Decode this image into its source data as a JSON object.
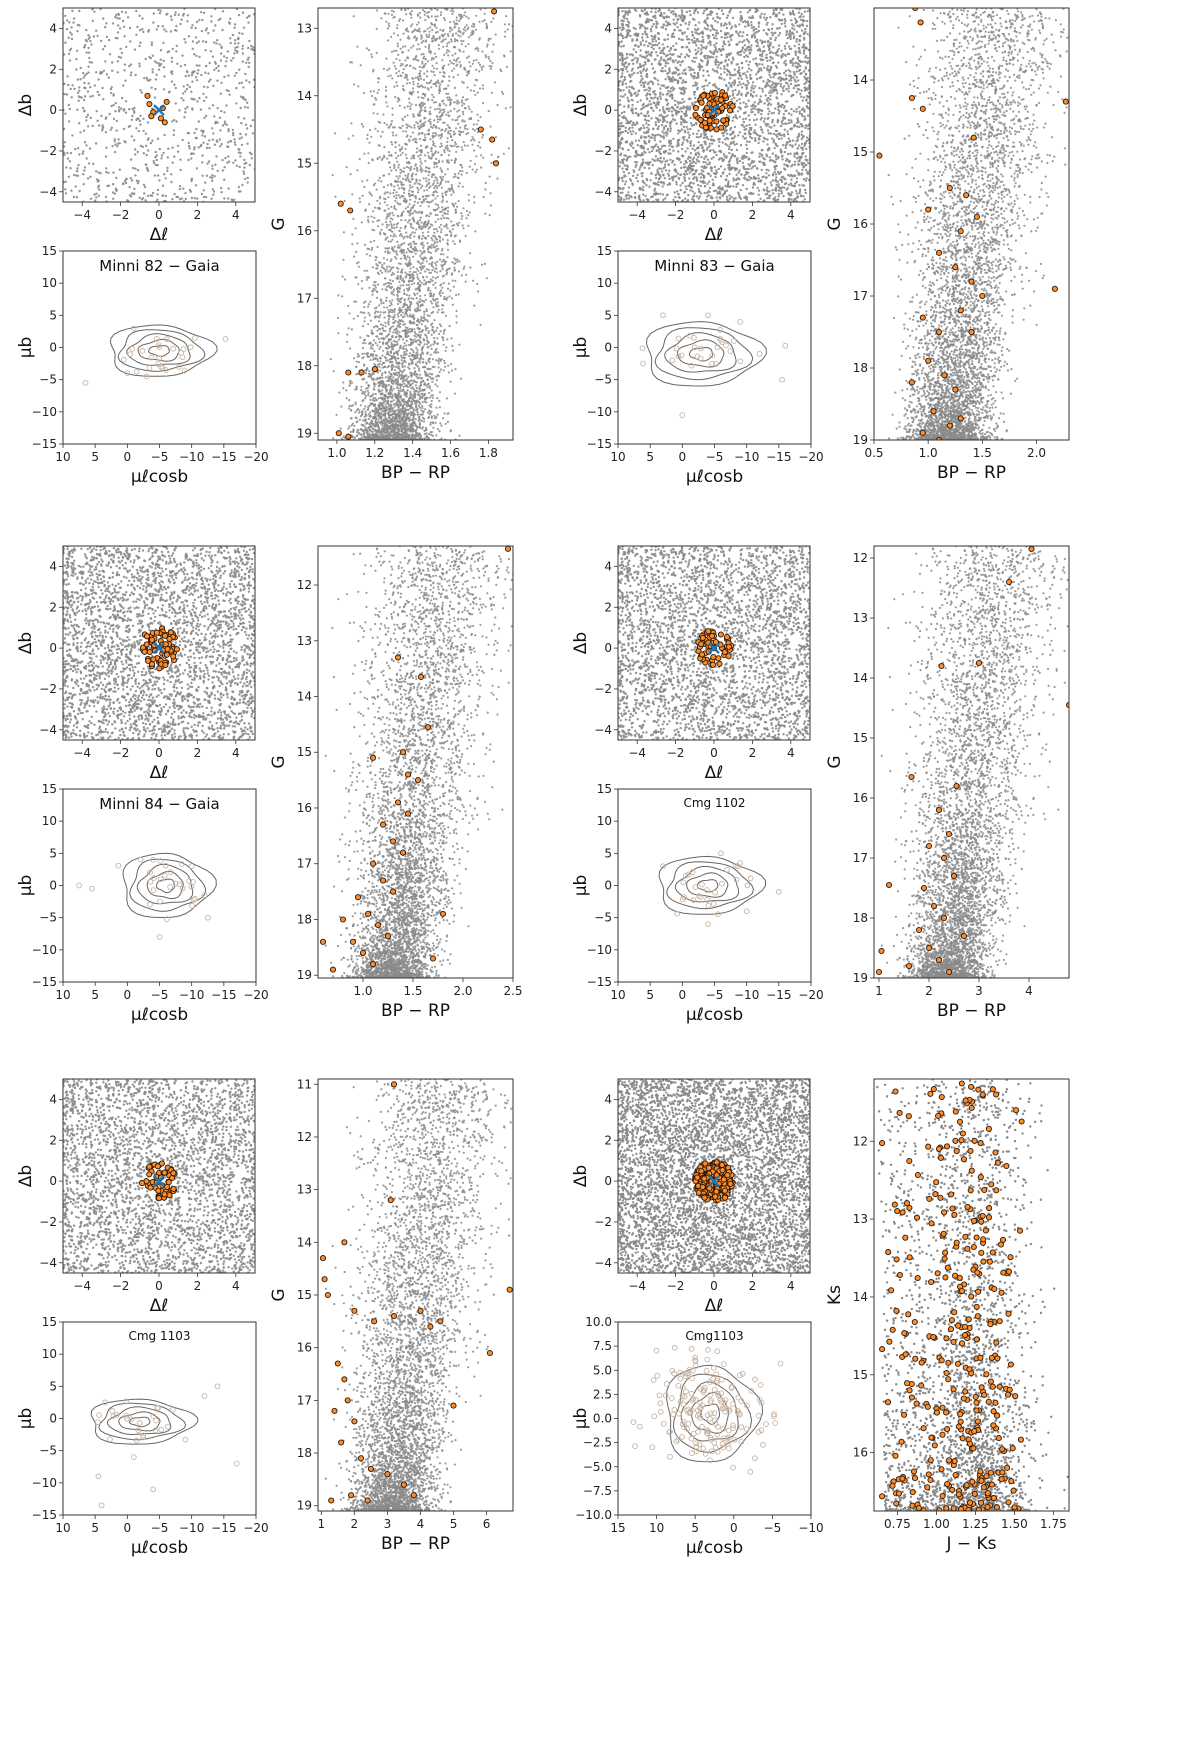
{
  "figure": {
    "colors": {
      "field": "#8a8a8a",
      "member": "#ff8c2a",
      "member_edge": "#2a1a0a",
      "center": "#1f77b4",
      "contour": "#666666",
      "faint": "#c9b3a0",
      "frame": "#333333"
    }
  },
  "chart_data": [
    {
      "id": "minni82",
      "title": "Minni 82 − Gaia",
      "sky": {
        "type": "scatter",
        "xlabel": "Δℓ",
        "ylabel": "Δb",
        "xlim": [
          -5,
          5
        ],
        "ylim": [
          -4.5,
          5
        ],
        "xticks": [
          -4,
          -2,
          0,
          2,
          4
        ],
        "yticks": [
          -4,
          -2,
          0,
          2,
          4
        ],
        "field_density": "sparse",
        "member_radius": 1,
        "members": [
          [
            -0.6,
            0.7
          ],
          [
            -0.5,
            0.3
          ],
          [
            -0.3,
            -0.1
          ],
          [
            0.1,
            -0.4
          ],
          [
            0.3,
            -0.6
          ],
          [
            0.4,
            0.4
          ],
          [
            -0.4,
            -0.3
          ],
          [
            0.2,
            0.1
          ]
        ]
      },
      "pm": {
        "type": "scatter",
        "xlabel": "μℓcosb",
        "ylabel": "μb",
        "xlim": [
          10,
          -20
        ],
        "ylim": [
          -15,
          15
        ],
        "xticks": [
          10,
          5,
          0,
          -5,
          -10,
          -15,
          -20
        ],
        "yticks": [
          -15,
          -10,
          -5,
          0,
          5,
          10,
          15
        ],
        "contour_center": [
          -5,
          -0.5
        ],
        "contour_extent": [
          8,
          4
        ],
        "members": [
          [
            6.5,
            -5.5
          ],
          [
            0,
            -4
          ],
          [
            -3,
            -4.5
          ],
          [
            -6,
            -3.5
          ]
        ]
      },
      "cmd": {
        "type": "scatter",
        "xlabel": "BP − RP",
        "ylabel": "G",
        "xlim": [
          0.9,
          1.93
        ],
        "ylim": [
          19.1,
          12.7
        ],
        "xticks": [
          1.0,
          1.2,
          1.4,
          1.6,
          1.8
        ],
        "yticks": [
          13,
          14,
          15,
          16,
          17,
          18,
          19
        ],
        "members": [
          [
            1.83,
            12.75
          ],
          [
            1.76,
            14.5
          ],
          [
            1.82,
            14.65
          ],
          [
            1.84,
            15.0
          ],
          [
            1.02,
            15.6
          ],
          [
            1.07,
            15.7
          ],
          [
            1.06,
            18.1
          ],
          [
            1.13,
            18.1
          ],
          [
            1.2,
            18.05
          ],
          [
            1.01,
            19.0
          ],
          [
            1.06,
            19.05
          ]
        ]
      }
    },
    {
      "id": "minni83",
      "title": "Minni 83 − Gaia",
      "sky": {
        "type": "scatter",
        "xlabel": "Δℓ",
        "ylabel": "Δb",
        "xlim": [
          -5,
          5
        ],
        "ylim": [
          -4.5,
          5
        ],
        "xticks": [
          -4,
          -2,
          0,
          2,
          4
        ],
        "yticks": [
          -4,
          -2,
          0,
          2,
          4
        ],
        "field_density": "dense",
        "member_radius": 1.0,
        "member_count": 70
      },
      "pm": {
        "type": "scatter",
        "xlabel": "μℓcosb",
        "ylabel": "μb",
        "xlim": [
          10,
          -20
        ],
        "ylim": [
          -15,
          15
        ],
        "xticks": [
          10,
          5,
          0,
          -5,
          -10,
          -15,
          -20
        ],
        "yticks": [
          -15,
          -10,
          -5,
          0,
          5,
          10,
          15
        ],
        "contour_center": [
          -3,
          -1
        ],
        "contour_extent": [
          9,
          5
        ],
        "members": [
          [
            0,
            -10.5
          ],
          [
            -8,
            1
          ],
          [
            -12,
            -1
          ],
          [
            -16,
            0.3
          ],
          [
            -15.5,
            -5
          ],
          [
            -9,
            4
          ],
          [
            -4,
            5
          ],
          [
            3,
            5
          ]
        ]
      },
      "cmd": {
        "type": "scatter",
        "xlabel": "BP − RP",
        "ylabel": "G",
        "xlim": [
          0.5,
          2.3
        ],
        "ylim": [
          19.0,
          13.0
        ],
        "xticks": [
          0.5,
          1.0,
          1.5,
          2.0
        ],
        "yticks": [
          14,
          15,
          16,
          17,
          18,
          19
        ],
        "members": [
          [
            0.88,
            13.0
          ],
          [
            0.93,
            13.2
          ],
          [
            0.85,
            14.25
          ],
          [
            0.95,
            14.4
          ],
          [
            2.27,
            14.3
          ],
          [
            0.55,
            15.05
          ],
          [
            1.42,
            14.8
          ],
          [
            2.17,
            16.9
          ],
          [
            1.2,
            15.5
          ],
          [
            1.35,
            15.6
          ],
          [
            1.45,
            15.9
          ],
          [
            1.3,
            16.1
          ],
          [
            1.0,
            15.8
          ],
          [
            1.1,
            16.4
          ],
          [
            1.25,
            16.6
          ],
          [
            1.4,
            16.8
          ],
          [
            1.5,
            17.0
          ],
          [
            0.95,
            17.3
          ],
          [
            1.1,
            17.5
          ],
          [
            1.3,
            17.2
          ],
          [
            1.4,
            17.5
          ],
          [
            1.0,
            17.9
          ],
          [
            1.15,
            18.1
          ],
          [
            1.25,
            18.3
          ],
          [
            0.85,
            18.2
          ],
          [
            1.05,
            18.6
          ],
          [
            1.2,
            18.8
          ],
          [
            0.95,
            18.9
          ],
          [
            1.1,
            19.0
          ],
          [
            1.3,
            18.7
          ]
        ]
      }
    },
    {
      "id": "minni84",
      "title": "Minni 84 − Gaia",
      "sky": {
        "type": "scatter",
        "xlabel": "Δℓ",
        "ylabel": "Δb",
        "xlim": [
          -5,
          5
        ],
        "ylim": [
          -4.5,
          5
        ],
        "xticks": [
          -4,
          -2,
          0,
          2,
          4
        ],
        "yticks": [
          -4,
          -2,
          0,
          2,
          4
        ],
        "field_density": "dense",
        "member_radius": 1.0,
        "member_count": 70
      },
      "pm": {
        "type": "scatter",
        "xlabel": "μℓcosb",
        "ylabel": "μb",
        "xlim": [
          10,
          -20
        ],
        "ylim": [
          -15,
          15
        ],
        "xticks": [
          10,
          5,
          0,
          -5,
          -10,
          -15,
          -20
        ],
        "yticks": [
          -15,
          -10,
          -5,
          0,
          5,
          10,
          15
        ],
        "contour_center": [
          -6,
          0
        ],
        "contour_extent": [
          7,
          5
        ],
        "members": [
          [
            7.5,
            0
          ],
          [
            5.5,
            -0.5
          ],
          [
            -12,
            -1.5
          ],
          [
            -12.5,
            -5
          ],
          [
            -5,
            -8
          ],
          [
            -4,
            4
          ],
          [
            -10,
            3
          ]
        ]
      },
      "cmd": {
        "type": "scatter",
        "xlabel": "BP − RP",
        "ylabel": "G",
        "xlim": [
          0.55,
          2.5
        ],
        "ylim": [
          19.05,
          11.3
        ],
        "xticks": [
          1.0,
          1.5,
          2.0,
          2.5
        ],
        "yticks": [
          12,
          13,
          14,
          15,
          16,
          17,
          18,
          19
        ],
        "members": [
          [
            2.45,
            11.35
          ],
          [
            1.35,
            13.3
          ],
          [
            1.58,
            13.65
          ],
          [
            1.65,
            14.55
          ],
          [
            1.1,
            15.1
          ],
          [
            1.4,
            15.0
          ],
          [
            1.45,
            15.4
          ],
          [
            1.55,
            15.5
          ],
          [
            1.35,
            15.9
          ],
          [
            1.45,
            16.1
          ],
          [
            1.2,
            16.3
          ],
          [
            1.3,
            16.6
          ],
          [
            1.4,
            16.8
          ],
          [
            1.1,
            17.0
          ],
          [
            1.2,
            17.3
          ],
          [
            1.3,
            17.5
          ],
          [
            0.95,
            17.6
          ],
          [
            1.05,
            17.9
          ],
          [
            1.15,
            18.1
          ],
          [
            1.25,
            18.3
          ],
          [
            0.8,
            18.0
          ],
          [
            0.9,
            18.4
          ],
          [
            1.0,
            18.6
          ],
          [
            1.1,
            18.8
          ],
          [
            0.7,
            18.9
          ],
          [
            0.6,
            18.4
          ],
          [
            1.8,
            17.9
          ],
          [
            1.7,
            18.7
          ]
        ]
      }
    },
    {
      "id": "cmg1102",
      "title": "Cmg 1102",
      "sky": {
        "type": "scatter",
        "xlabel": "Δℓ",
        "ylabel": "Δb",
        "xlim": [
          -5,
          5
        ],
        "ylim": [
          -4.5,
          5
        ],
        "xticks": [
          -4,
          -2,
          0,
          2,
          4
        ],
        "yticks": [
          -4,
          -2,
          0,
          2,
          4
        ],
        "field_density": "dense",
        "member_radius": 0.9,
        "member_count": 55
      },
      "pm": {
        "type": "scatter",
        "xlabel": "μℓcosb",
        "ylabel": "μb",
        "xlim": [
          10,
          -20
        ],
        "ylim": [
          -15,
          15
        ],
        "xticks": [
          10,
          5,
          0,
          -5,
          -10,
          -15,
          -20
        ],
        "yticks": [
          -15,
          -10,
          -5,
          0,
          5,
          10,
          15
        ],
        "contour_center": [
          -4,
          0
        ],
        "contour_extent": [
          8,
          4.5
        ],
        "members": [
          [
            -15,
            -1
          ],
          [
            -10,
            -4
          ],
          [
            -4,
            -6
          ],
          [
            -6,
            5
          ],
          [
            3,
            3
          ],
          [
            -9,
            3.5
          ]
        ]
      },
      "cmd": {
        "type": "scatter",
        "xlabel": "BP − RP",
        "ylabel": "G",
        "xlim": [
          0.9,
          4.8
        ],
        "ylim": [
          19.0,
          11.8
        ],
        "xticks": [
          1,
          2,
          3,
          4
        ],
        "yticks": [
          12,
          13,
          14,
          15,
          16,
          17,
          18,
          19
        ],
        "members": [
          [
            4.05,
            11.85
          ],
          [
            3.6,
            12.4
          ],
          [
            4.8,
            14.45
          ],
          [
            2.25,
            13.8
          ],
          [
            3.0,
            13.75
          ],
          [
            1.65,
            15.65
          ],
          [
            2.55,
            15.8
          ],
          [
            2.2,
            16.2
          ],
          [
            2.4,
            16.6
          ],
          [
            2.0,
            16.8
          ],
          [
            2.3,
            17.0
          ],
          [
            2.5,
            17.3
          ],
          [
            1.9,
            17.5
          ],
          [
            2.1,
            17.8
          ],
          [
            2.3,
            18.0
          ],
          [
            1.8,
            18.2
          ],
          [
            2.0,
            18.5
          ],
          [
            2.2,
            18.7
          ],
          [
            2.4,
            18.9
          ],
          [
            1.6,
            18.8
          ],
          [
            1.0,
            18.9
          ],
          [
            1.05,
            18.55
          ],
          [
            1.2,
            17.45
          ],
          [
            2.7,
            18.3
          ]
        ]
      }
    },
    {
      "id": "cmg1103gaia",
      "title": "Cmg 1103",
      "sky": {
        "type": "scatter",
        "xlabel": "Δℓ",
        "ylabel": "Δb",
        "xlim": [
          -5,
          5
        ],
        "ylim": [
          -4.5,
          5
        ],
        "xticks": [
          -4,
          -2,
          0,
          2,
          4
        ],
        "yticks": [
          -4,
          -2,
          0,
          2,
          4
        ],
        "field_density": "dense",
        "member_radius": 0.9,
        "member_count": 55
      },
      "pm": {
        "type": "scatter",
        "xlabel": "μℓcosb",
        "ylabel": "μb",
        "xlim": [
          10,
          -20
        ],
        "ylim": [
          -15,
          15
        ],
        "xticks": [
          10,
          5,
          0,
          -5,
          -10,
          -15,
          -20
        ],
        "yticks": [
          -15,
          -10,
          -5,
          0,
          5,
          10,
          15
        ],
        "contour_center": [
          -2,
          -0.5
        ],
        "contour_extent": [
          8,
          3.5
        ],
        "members": [
          [
            4.5,
            -9
          ],
          [
            4,
            -13.5
          ],
          [
            -17,
            -7
          ],
          [
            -14,
            5
          ],
          [
            -12,
            3.5
          ],
          [
            -1,
            -6
          ],
          [
            -4,
            -11
          ]
        ]
      },
      "cmd": {
        "type": "scatter",
        "xlabel": "BP − RP",
        "ylabel": "G",
        "xlim": [
          0.9,
          6.8
        ],
        "ylim": [
          19.1,
          10.9
        ],
        "xticks": [
          1,
          2,
          3,
          4,
          5,
          6
        ],
        "yticks": [
          11,
          12,
          13,
          14,
          15,
          16,
          17,
          18,
          19
        ],
        "members": [
          [
            3.2,
            11.0
          ],
          [
            3.1,
            13.2
          ],
          [
            1.7,
            14.0
          ],
          [
            1.05,
            14.3
          ],
          [
            1.1,
            14.7
          ],
          [
            1.2,
            15.0
          ],
          [
            6.7,
            14.9
          ],
          [
            2.0,
            15.3
          ],
          [
            2.6,
            15.5
          ],
          [
            3.2,
            15.4
          ],
          [
            4.0,
            15.3
          ],
          [
            4.3,
            15.6
          ],
          [
            4.6,
            15.5
          ],
          [
            6.1,
            16.1
          ],
          [
            5.0,
            17.1
          ],
          [
            1.5,
            16.3
          ],
          [
            1.7,
            16.6
          ],
          [
            1.8,
            17.0
          ],
          [
            2.0,
            17.4
          ],
          [
            1.6,
            17.8
          ],
          [
            2.2,
            18.1
          ],
          [
            2.5,
            18.3
          ],
          [
            3.0,
            18.4
          ],
          [
            3.5,
            18.6
          ],
          [
            1.9,
            18.8
          ],
          [
            2.4,
            18.9
          ],
          [
            3.8,
            18.8
          ],
          [
            1.3,
            18.9
          ],
          [
            1.4,
            17.2
          ]
        ]
      }
    },
    {
      "id": "cmg1103vvv",
      "title": "Cmg1103",
      "sky": {
        "type": "scatter",
        "xlabel": "Δℓ",
        "ylabel": "Δb",
        "xlim": [
          -5,
          5
        ],
        "ylim": [
          -4.5,
          5
        ],
        "xticks": [
          -4,
          -2,
          0,
          2,
          4
        ],
        "yticks": [
          -4,
          -2,
          0,
          2,
          4
        ],
        "field_density": "very_dense",
        "member_radius": 1.0,
        "member_count": 260
      },
      "pm": {
        "type": "scatter",
        "xlabel": "μℓcosb",
        "ylabel": "μb",
        "xlim": [
          15,
          -10
        ],
        "ylim": [
          -10,
          10
        ],
        "xticks": [
          15,
          10,
          5,
          0,
          -5,
          -10
        ],
        "yticks": [
          -10.0,
          -7.5,
          -5.0,
          -2.5,
          0.0,
          2.5,
          5.0,
          7.5,
          10.0
        ],
        "contour_center": [
          3,
          0.5
        ],
        "contour_extent": [
          6,
          5
        ],
        "scatter_extent": [
          7,
          6.5
        ],
        "member_count": 180
      },
      "cmd": {
        "type": "scatter",
        "xlabel": "J − Ks",
        "ylabel": "Ks",
        "xlim": [
          0.6,
          1.85
        ],
        "ylim": [
          16.75,
          11.2
        ],
        "xticks": [
          0.75,
          1.0,
          1.25,
          1.5,
          1.75
        ],
        "yticks": [
          12,
          13,
          14,
          15,
          16
        ],
        "member_count": 330
      }
    }
  ]
}
